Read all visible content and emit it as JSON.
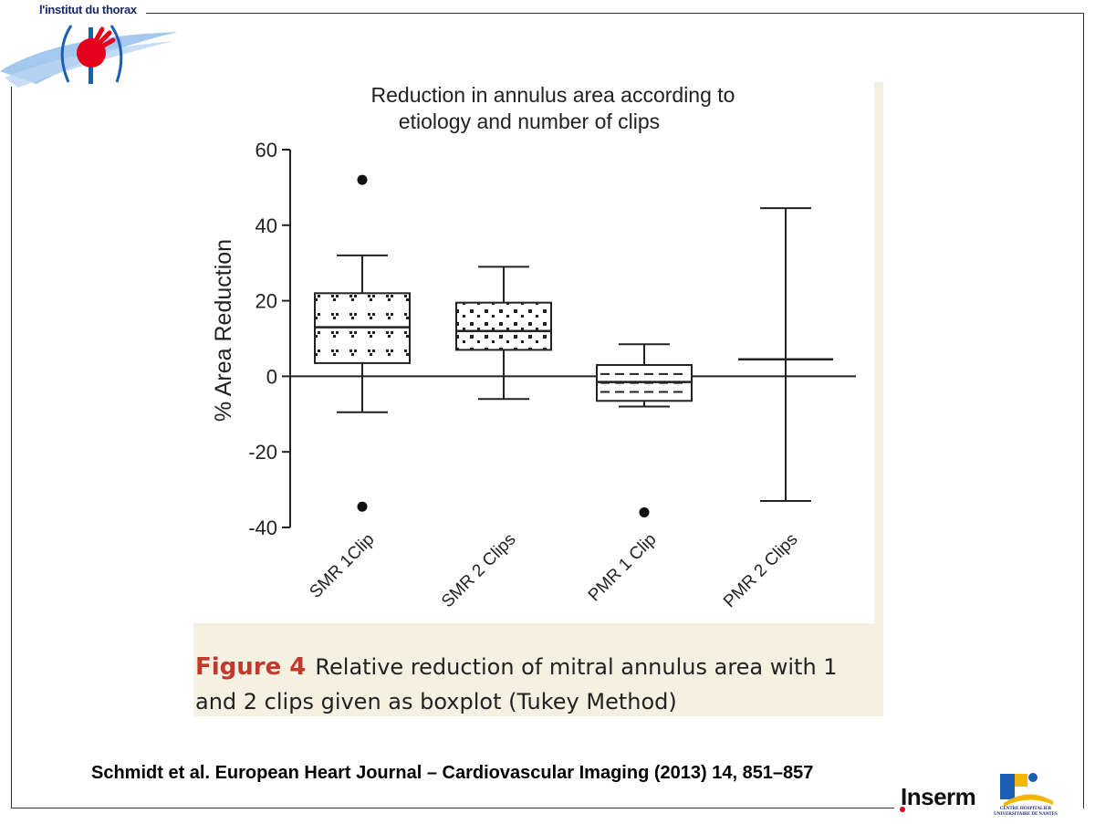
{
  "header": {
    "logo_text": "l'institut du thorax"
  },
  "chart_data": {
    "type": "boxplot",
    "title": "Reduction in annulus area according to etiology and number of clips",
    "title_lines": [
      "Reduction in annulus area according to",
      "etiology and number of clips"
    ],
    "xlabel": "",
    "ylabel": "% Area Reduction",
    "ylim": [
      -40,
      60
    ],
    "yticks": [
      60,
      40,
      20,
      0,
      -20,
      -40
    ],
    "ytick_labels": [
      "60",
      "40",
      "20",
      "0",
      "-20",
      "-40"
    ],
    "categories": [
      "SMR 1Clip",
      "SMR 2 Clips",
      "PMR 1 Clip",
      "PMR 2 Clips"
    ],
    "boxes": [
      {
        "name": "SMR 1Clip",
        "whisker_low": -9.5,
        "q1": 3.5,
        "median": 13,
        "q3": 22,
        "whisker_high": 32,
        "outliers": [
          52,
          -34.5
        ],
        "pattern": "dots-dense"
      },
      {
        "name": "SMR 2 Clips",
        "whisker_low": -6,
        "q1": 7,
        "median": 12,
        "q3": 19.5,
        "whisker_high": 29,
        "outliers": [],
        "pattern": "dots-sparse"
      },
      {
        "name": "PMR 1 Clip",
        "whisker_low": -8,
        "q1": -6.5,
        "median": -1.5,
        "q3": 3,
        "whisker_high": 8.5,
        "outliers": [
          -36
        ],
        "pattern": "dashes"
      },
      {
        "name": "PMR 2 Clips",
        "whisker_low": -33,
        "q1": null,
        "median": 4.5,
        "q3": null,
        "whisker_high": 44.5,
        "outliers": [],
        "pattern": "none"
      }
    ],
    "reference_line": 0,
    "grid": false,
    "legend": "none"
  },
  "caption": {
    "label": "Figure 4",
    "text": "Relative reduction of mitral annulus area with 1 and 2 clips given as boxplot (Tukey Method)"
  },
  "footer": {
    "citation": "Schmidt et al. European Heart Journal – Cardiovascular Imaging (2013) 14, 851–857",
    "inserm": "Inserm",
    "chu_text": "CENTRE HOSPITALIER UNIVERSITAIRE DE NANTES"
  },
  "colors": {
    "caption_label": "#c0392b",
    "panel_bg": "#f4f0e2",
    "logo_red": "#e2001a",
    "logo_blue": "#1a5fb4"
  }
}
